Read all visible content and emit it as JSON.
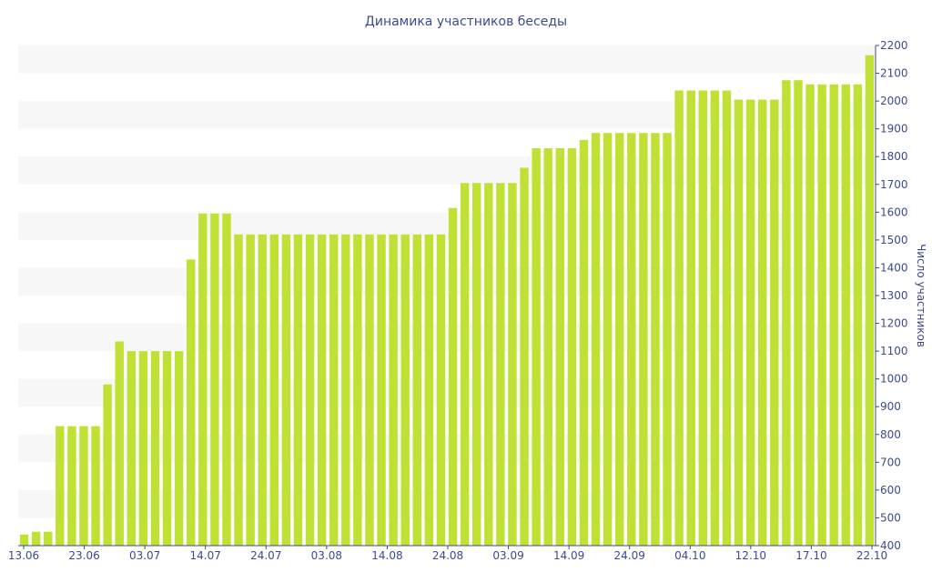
{
  "chart_data": {
    "type": "bar",
    "title": "Динамика участников беседы",
    "xlabel": "",
    "ylabel": "Число участников",
    "ylim": [
      400,
      2200
    ],
    "yticks": [
      400,
      500,
      600,
      700,
      800,
      900,
      1000,
      1100,
      1200,
      1300,
      1400,
      1500,
      1600,
      1700,
      1800,
      1900,
      2000,
      2100,
      2200
    ],
    "xtick_labels": [
      "13.06",
      "23.06",
      "03.07",
      "14.07",
      "24.07",
      "03.08",
      "14.08",
      "24.08",
      "03.09",
      "14.09",
      "24.09",
      "04.10",
      "12.10",
      "17.10",
      "22.10"
    ],
    "values": [
      440,
      450,
      450,
      830,
      830,
      830,
      830,
      980,
      1135,
      1100,
      1100,
      1100,
      1100,
      1100,
      1430,
      1595,
      1595,
      1595,
      1520,
      1520,
      1520,
      1520,
      1520,
      1520,
      1520,
      1520,
      1520,
      1520,
      1520,
      1520,
      1520,
      1520,
      1520,
      1520,
      1520,
      1520,
      1615,
      1705,
      1705,
      1705,
      1705,
      1705,
      1760,
      1830,
      1830,
      1830,
      1830,
      1860,
      1885,
      1885,
      1885,
      1885,
      1885,
      1885,
      1885,
      2038,
      2038,
      2038,
      2038,
      2038,
      2005,
      2005,
      2005,
      2005,
      2075,
      2075,
      2060,
      2060,
      2060,
      2060,
      2060,
      2165
    ],
    "bar_color": "#bfe133",
    "band_color": "#f7f7f7",
    "text_color": "#3b4a8f",
    "grid": "alternating horizontal bands",
    "y_axis_position": "right",
    "legend": "none"
  }
}
